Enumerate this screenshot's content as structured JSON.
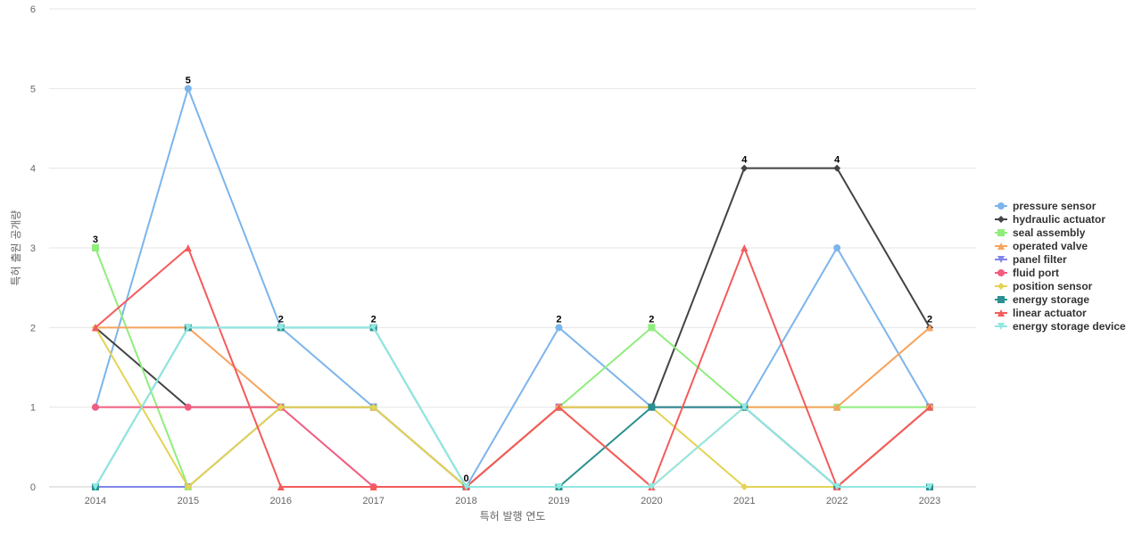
{
  "chart_data": {
    "type": "line",
    "title": "",
    "xlabel": "특허 발행 연도",
    "ylabel": "특허 출원 공개량",
    "categories": [
      "2014",
      "2015",
      "2016",
      "2017",
      "2018",
      "2019",
      "2020",
      "2021",
      "2022",
      "2023"
    ],
    "ylim": [
      0,
      6
    ],
    "yticks": [
      0,
      1,
      2,
      3,
      4,
      5,
      6
    ],
    "grid": "horizontal",
    "legend_position": "right",
    "data_labels": "max value per category",
    "series": [
      {
        "name": "pressure sensor",
        "color": "#7cb5ec",
        "marker": "circle",
        "values": [
          1,
          5,
          2,
          1,
          0,
          2,
          1,
          1,
          3,
          1
        ]
      },
      {
        "name": "hydraulic actuator",
        "color": "#434348",
        "marker": "diamond",
        "values": [
          2,
          1,
          1,
          1,
          0,
          1,
          1,
          4,
          4,
          2
        ]
      },
      {
        "name": "seal assembly",
        "color": "#90ed7d",
        "marker": "square",
        "values": [
          3,
          0,
          1,
          1,
          0,
          1,
          2,
          1,
          1,
          1
        ]
      },
      {
        "name": "operated valve",
        "color": "#f7a35c",
        "marker": "triangle",
        "values": [
          2,
          2,
          1,
          1,
          0,
          1,
          0,
          1,
          1,
          2
        ]
      },
      {
        "name": "panel filter",
        "color": "#8085e9",
        "marker": "triangle-down",
        "values": [
          0,
          0,
          1,
          1,
          0,
          1,
          1,
          1,
          0,
          1
        ]
      },
      {
        "name": "fluid port",
        "color": "#f15c80",
        "marker": "circle",
        "values": [
          1,
          1,
          1,
          0,
          0,
          1,
          1,
          1,
          0,
          1
        ]
      },
      {
        "name": "position sensor",
        "color": "#e4d354",
        "marker": "diamond",
        "values": [
          2,
          0,
          1,
          1,
          0,
          1,
          1,
          0,
          0,
          1
        ]
      },
      {
        "name": "energy storage",
        "color": "#2b908f",
        "marker": "square",
        "values": [
          0,
          2,
          2,
          2,
          0,
          0,
          1,
          1,
          0,
          0
        ]
      },
      {
        "name": "linear actuator",
        "color": "#f45b5b",
        "marker": "triangle",
        "values": [
          2,
          3,
          0,
          0,
          0,
          1,
          0,
          3,
          0,
          1
        ]
      },
      {
        "name": "energy storage device",
        "color": "#91e8e1",
        "marker": "triangle-down",
        "values": [
          0,
          2,
          2,
          2,
          0,
          0,
          0,
          1,
          0,
          0
        ]
      }
    ]
  }
}
